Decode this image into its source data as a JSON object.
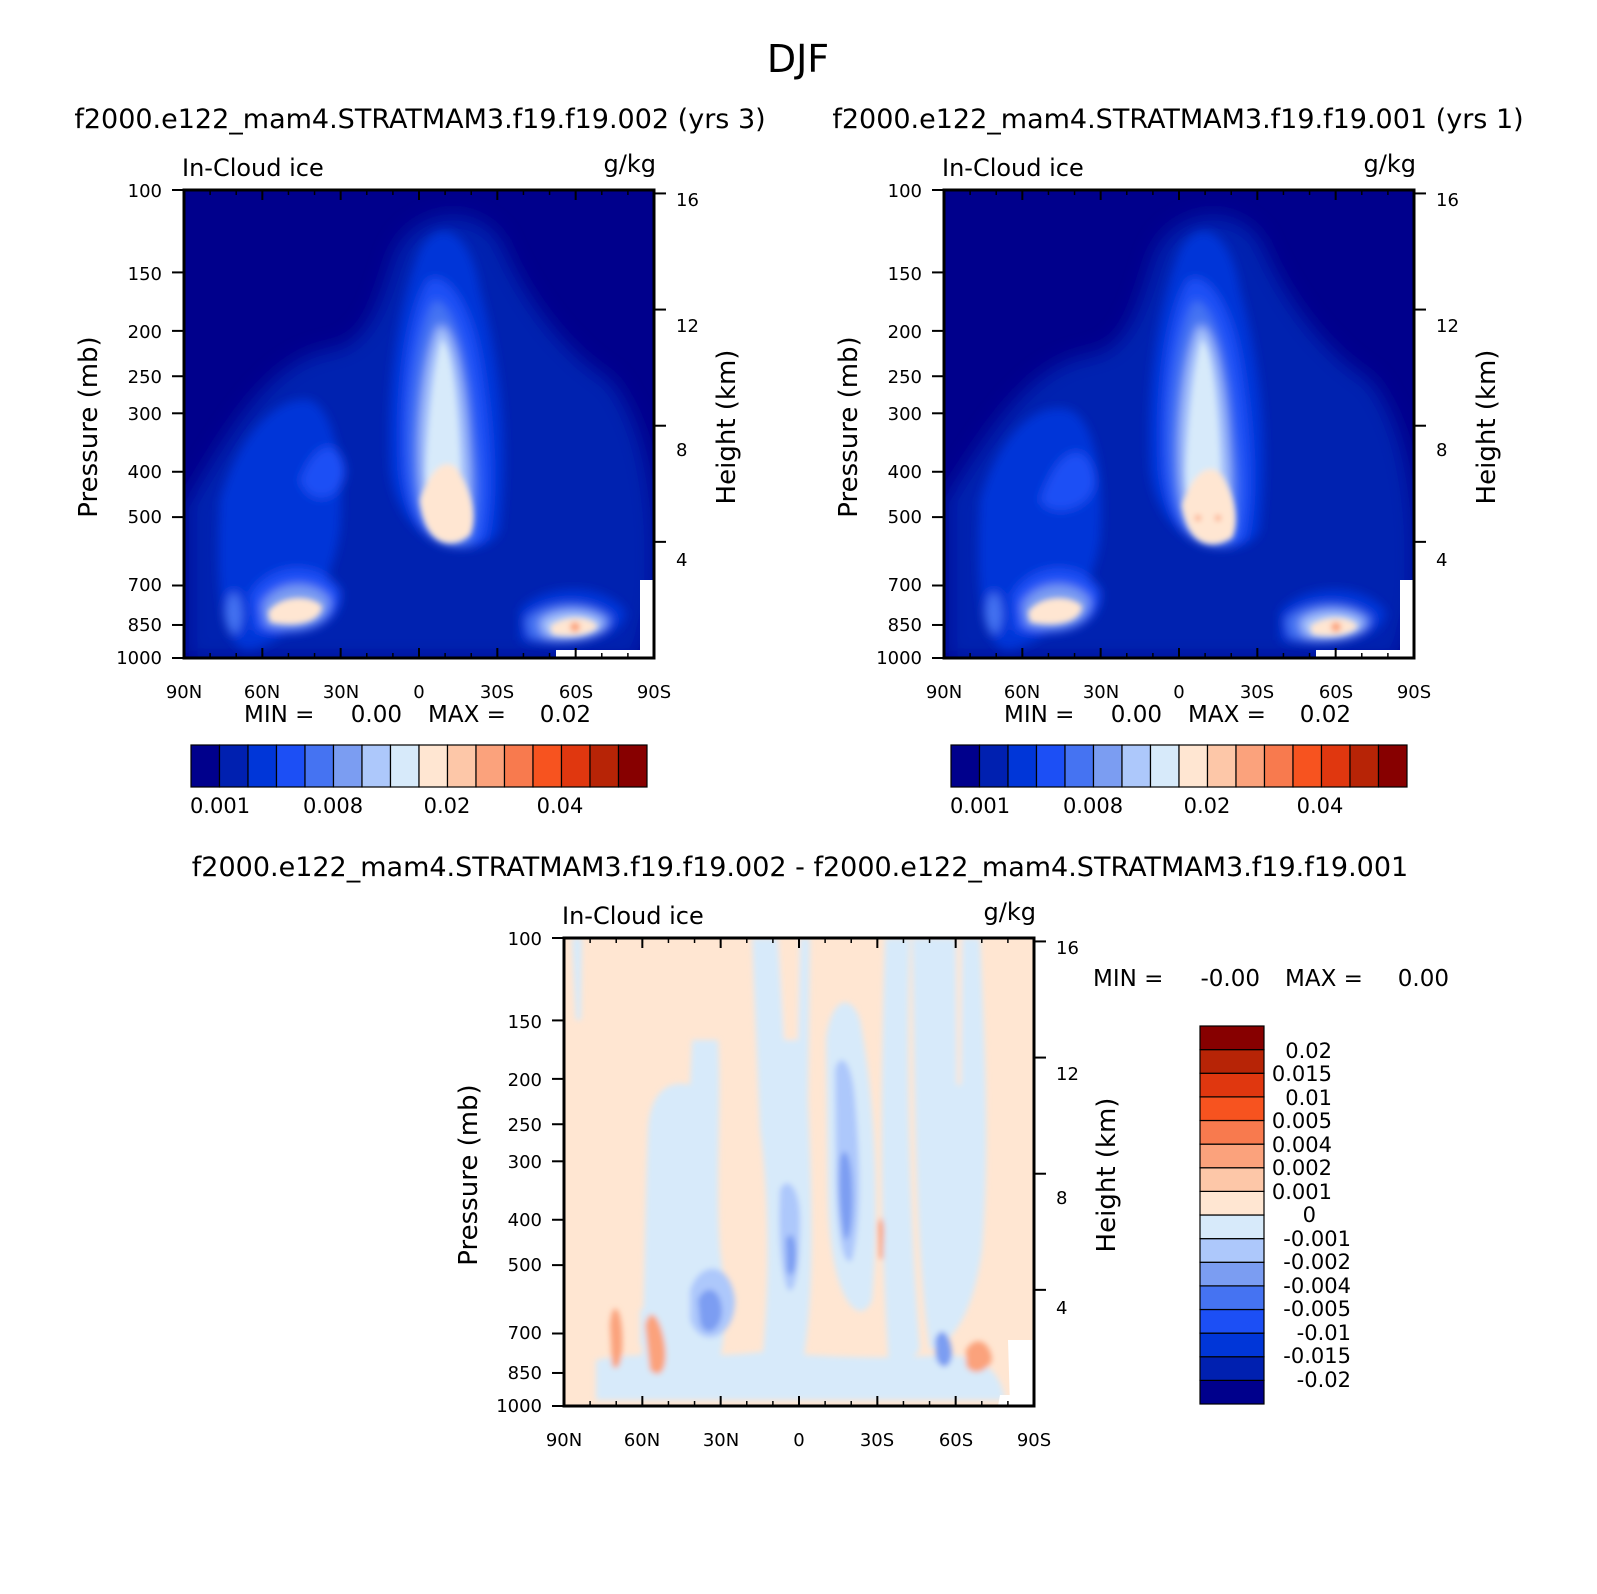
{
  "page_title": "DJF",
  "colors": {
    "seq_scale": [
      "#00008c",
      "#0020b0",
      "#0036d8",
      "#1c4ff5",
      "#4573f2",
      "#7b9df2",
      "#adc8fb",
      "#d7eafa",
      "#ffe6d2",
      "#fdc7a8",
      "#fba27c",
      "#f87a4e",
      "#f7531f",
      "#e0370f",
      "#b72406",
      "#870000"
    ],
    "diff_scale": [
      "#00008c",
      "#0020b0",
      "#0036d8",
      "#1c4ff5",
      "#4573f2",
      "#7b9df2",
      "#adc8fb",
      "#d7eafa",
      "#ffe6d2",
      "#fdc7a8",
      "#fba27c",
      "#f87a4e",
      "#f7531f",
      "#e0370f",
      "#b72406",
      "#870000"
    ]
  },
  "chart_data": [
    {
      "type": "heatmap",
      "panel": "top-left",
      "case_title": "f2000.e122_mam4.STRATMAM3.f19.f19.002 (yrs 3)",
      "variable": "In-Cloud ice",
      "units": "g/kg",
      "ylabel": "Pressure (mb)",
      "ylabel_right": "Height (km)",
      "x_ticks": [
        "90N",
        "60N",
        "30N",
        "0",
        "30S",
        "60S",
        "90S"
      ],
      "y_ticks": [
        "100",
        "150",
        "200",
        "250",
        "300",
        "400",
        "500",
        "700",
        "850",
        "1000"
      ],
      "y_ticks_right": [
        "16",
        "12",
        "8",
        "4"
      ],
      "min_text": "MIN =",
      "min_value": "0.00",
      "max_text": "MAX =",
      "max_value": "0.02",
      "colorbar_labels": [
        "0.001",
        "0.008",
        "0.02",
        "0.04"
      ]
    },
    {
      "type": "heatmap",
      "panel": "top-right",
      "case_title": "f2000.e122_mam4.STRATMAM3.f19.f19.001 (yrs 1)",
      "variable": "In-Cloud ice",
      "units": "g/kg",
      "ylabel": "Pressure (mb)",
      "ylabel_right": "Height (km)",
      "x_ticks": [
        "90N",
        "60N",
        "30N",
        "0",
        "30S",
        "60S",
        "90S"
      ],
      "y_ticks": [
        "100",
        "150",
        "200",
        "250",
        "300",
        "400",
        "500",
        "700",
        "850",
        "1000"
      ],
      "y_ticks_right": [
        "16",
        "12",
        "8",
        "4"
      ],
      "min_text": "MIN =",
      "min_value": "0.00",
      "max_text": "MAX =",
      "max_value": "0.02",
      "colorbar_labels": [
        "0.001",
        "0.008",
        "0.02",
        "0.04"
      ]
    },
    {
      "type": "heatmap",
      "panel": "bottom-difference",
      "case_title": "f2000.e122_mam4.STRATMAM3.f19.f19.002 - f2000.e122_mam4.STRATMAM3.f19.f19.001",
      "variable": "In-Cloud ice",
      "units": "g/kg",
      "ylabel": "Pressure (mb)",
      "ylabel_right": "Height (km)",
      "x_ticks": [
        "90N",
        "60N",
        "30N",
        "0",
        "30S",
        "60S",
        "90S"
      ],
      "y_ticks": [
        "100",
        "150",
        "200",
        "250",
        "300",
        "400",
        "500",
        "700",
        "850",
        "1000"
      ],
      "y_ticks_right": [
        "16",
        "12",
        "8",
        "4"
      ],
      "min_text": "MIN =",
      "min_value": "-0.00",
      "max_text": "MAX =",
      "max_value": "0.00",
      "colorbar_labels": [
        "0.02",
        "0.015",
        "0.01",
        "0.005",
        "0.004",
        "0.002",
        "0.001",
        "0",
        "-0.001",
        "-0.002",
        "-0.004",
        "-0.005",
        "-0.01",
        "-0.015",
        "-0.02"
      ]
    }
  ]
}
